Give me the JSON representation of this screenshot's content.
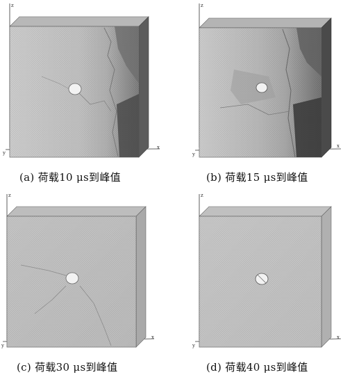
{
  "figure": {
    "panels": [
      {
        "caption": "(a) 荷载10 μs到峰值",
        "axis_z": "z",
        "axis_x": "x",
        "axis_y": "y"
      },
      {
        "caption": "(b) 荷载15 μs到峰值",
        "axis_z": "z",
        "axis_x": "x",
        "axis_y": "y"
      },
      {
        "caption": "(c) 荷载30 μs到峰值",
        "axis_z": "z",
        "axis_x": "x",
        "axis_y": "y"
      },
      {
        "caption": "(d) 荷载40 μs到峰值",
        "axis_z": "z",
        "axis_x": "x",
        "axis_y": "y"
      }
    ]
  }
}
